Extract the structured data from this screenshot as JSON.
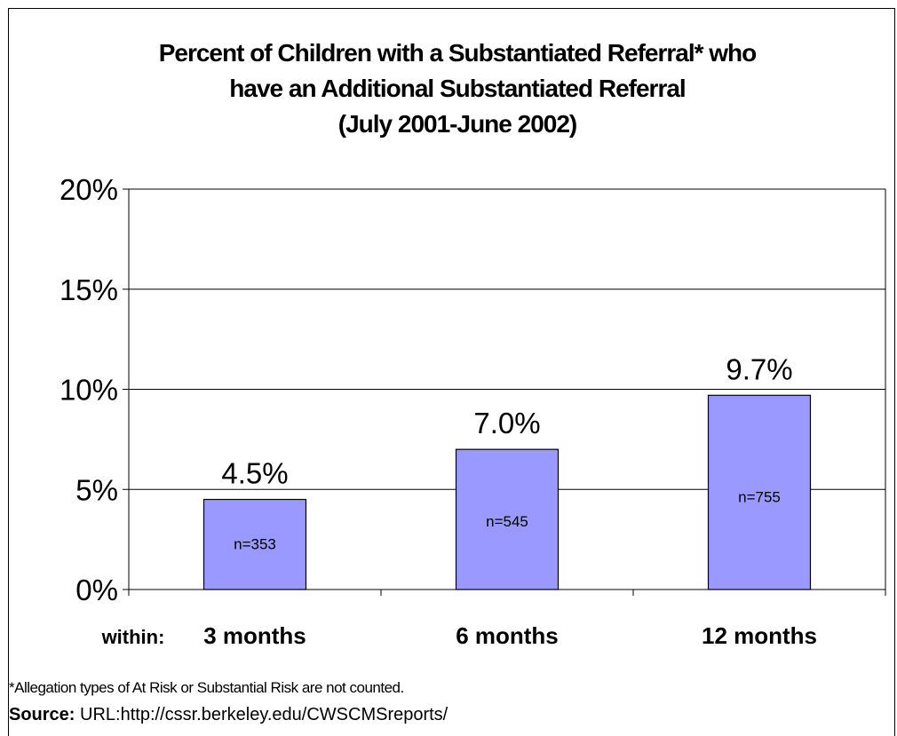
{
  "chart_data": {
    "type": "bar",
    "title_lines": [
      "Percent of Children with a Substantiated Referral* who",
      "have an Additional Substantiated Referral",
      "(July 2001-June 2002)"
    ],
    "x_prefix_label": "within:",
    "categories": [
      "3 months",
      "6 months",
      "12 months"
    ],
    "values": [
      4.5,
      7.0,
      9.7
    ],
    "data_labels": [
      "4.5%",
      "7.0%",
      "9.7%"
    ],
    "inner_labels": [
      "n=353",
      "n=545",
      "n=755"
    ],
    "ylim": [
      0,
      20
    ],
    "yticks": [
      0,
      5,
      10,
      15,
      20
    ],
    "ytick_labels": [
      "0%",
      "5%",
      "10%",
      "15%",
      "20%"
    ],
    "grid": true,
    "bar_color": "#9999ff"
  },
  "footnote": "*Allegation types of At Risk or Substantial Risk are not counted.",
  "source": {
    "label": "Source:",
    "text": "URL:http://cssr.berkeley.edu/CWSCMSreports/"
  }
}
